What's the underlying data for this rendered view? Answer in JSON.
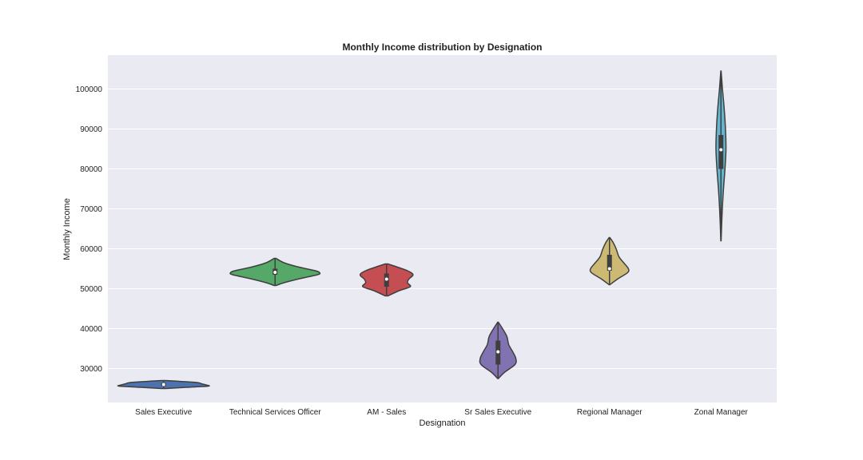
{
  "chart_data": {
    "type": "violin",
    "title": "Monthly Income distribution by Designation",
    "xlabel": "Designation",
    "ylabel": "Monthly Income",
    "categories": [
      "Sales Executive",
      "Technical Services Officer",
      "AM - Sales",
      "Sr Sales Executive",
      "Regional Manager",
      "Zonal Manager"
    ],
    "ylim": [
      21500,
      108500
    ],
    "yticks": [
      30000,
      40000,
      50000,
      60000,
      70000,
      80000,
      90000,
      100000
    ],
    "ytick_labels": [
      "30000",
      "40000",
      "50000",
      "60000",
      "70000",
      "80000",
      "90000",
      "100000"
    ],
    "grid": true,
    "background_color": "#eaeaf2",
    "series": [
      {
        "category": "Sales Executive",
        "color": "#4c72b0",
        "min": 25000,
        "max": 27000,
        "q1": 25600,
        "median": 26000,
        "q3": 26400,
        "max_width": 0.4,
        "density": [
          [
            25000,
            0.05
          ],
          [
            25300,
            0.5
          ],
          [
            25600,
            1.0
          ],
          [
            25900,
            0.95
          ],
          [
            26200,
            0.85
          ],
          [
            26500,
            0.75
          ],
          [
            26800,
            0.35
          ],
          [
            27000,
            0.05
          ]
        ]
      },
      {
        "category": "Technical Services Officer",
        "color": "#55a868",
        "min": 50800,
        "max": 57600,
        "q1": 53500,
        "median": 54100,
        "q3": 55000,
        "max_width": 0.4,
        "density": [
          [
            50800,
            0.02
          ],
          [
            51500,
            0.2
          ],
          [
            52500,
            0.55
          ],
          [
            53500,
            0.95
          ],
          [
            54000,
            1.0
          ],
          [
            54500,
            0.9
          ],
          [
            55500,
            0.5
          ],
          [
            56500,
            0.2
          ],
          [
            57600,
            0.02
          ]
        ]
      },
      {
        "category": "AM - Sales",
        "color": "#c44e52",
        "min": 48200,
        "max": 56200,
        "q1": 50500,
        "median": 52400,
        "q3": 53800,
        "max_width": 0.25,
        "density": [
          [
            48200,
            0.05
          ],
          [
            49500,
            0.45
          ],
          [
            50500,
            0.85
          ],
          [
            51500,
            0.75
          ],
          [
            52400,
            0.8
          ],
          [
            53500,
            0.95
          ],
          [
            54500,
            0.75
          ],
          [
            55500,
            0.35
          ],
          [
            56200,
            0.05
          ]
        ]
      },
      {
        "category": "Sr Sales Executive",
        "color": "#8172b2",
        "min": 27500,
        "max": 41600,
        "q1": 31000,
        "median": 34200,
        "q3": 37000,
        "max_width": 0.16,
        "density": [
          [
            27500,
            0.02
          ],
          [
            29000,
            0.35
          ],
          [
            31000,
            0.95
          ],
          [
            32500,
            1.0
          ],
          [
            34000,
            0.85
          ],
          [
            36000,
            0.6
          ],
          [
            38000,
            0.5
          ],
          [
            40000,
            0.25
          ],
          [
            41600,
            0.02
          ]
        ]
      },
      {
        "category": "Regional Manager",
        "color": "#ccb974",
        "min": 51000,
        "max": 62800,
        "q1": 54500,
        "median": 55000,
        "q3": 58500,
        "max_width": 0.17,
        "density": [
          [
            51000,
            0.02
          ],
          [
            52500,
            0.45
          ],
          [
            54000,
            0.95
          ],
          [
            55000,
            1.0
          ],
          [
            56500,
            0.75
          ],
          [
            58000,
            0.5
          ],
          [
            60000,
            0.35
          ],
          [
            61500,
            0.2
          ],
          [
            62800,
            0.02
          ]
        ]
      },
      {
        "category": "Zonal Manager",
        "color": "#64b5cd",
        "min": 62000,
        "max": 104500,
        "q1": 80000,
        "median": 84800,
        "q3": 88500,
        "max_width": 0.045,
        "density": [
          [
            62000,
            0.03
          ],
          [
            68000,
            0.2
          ],
          [
            74000,
            0.45
          ],
          [
            80000,
            0.8
          ],
          [
            85000,
            1.0
          ],
          [
            90000,
            0.9
          ],
          [
            95000,
            0.65
          ],
          [
            100000,
            0.3
          ],
          [
            104500,
            0.03
          ]
        ]
      }
    ]
  }
}
